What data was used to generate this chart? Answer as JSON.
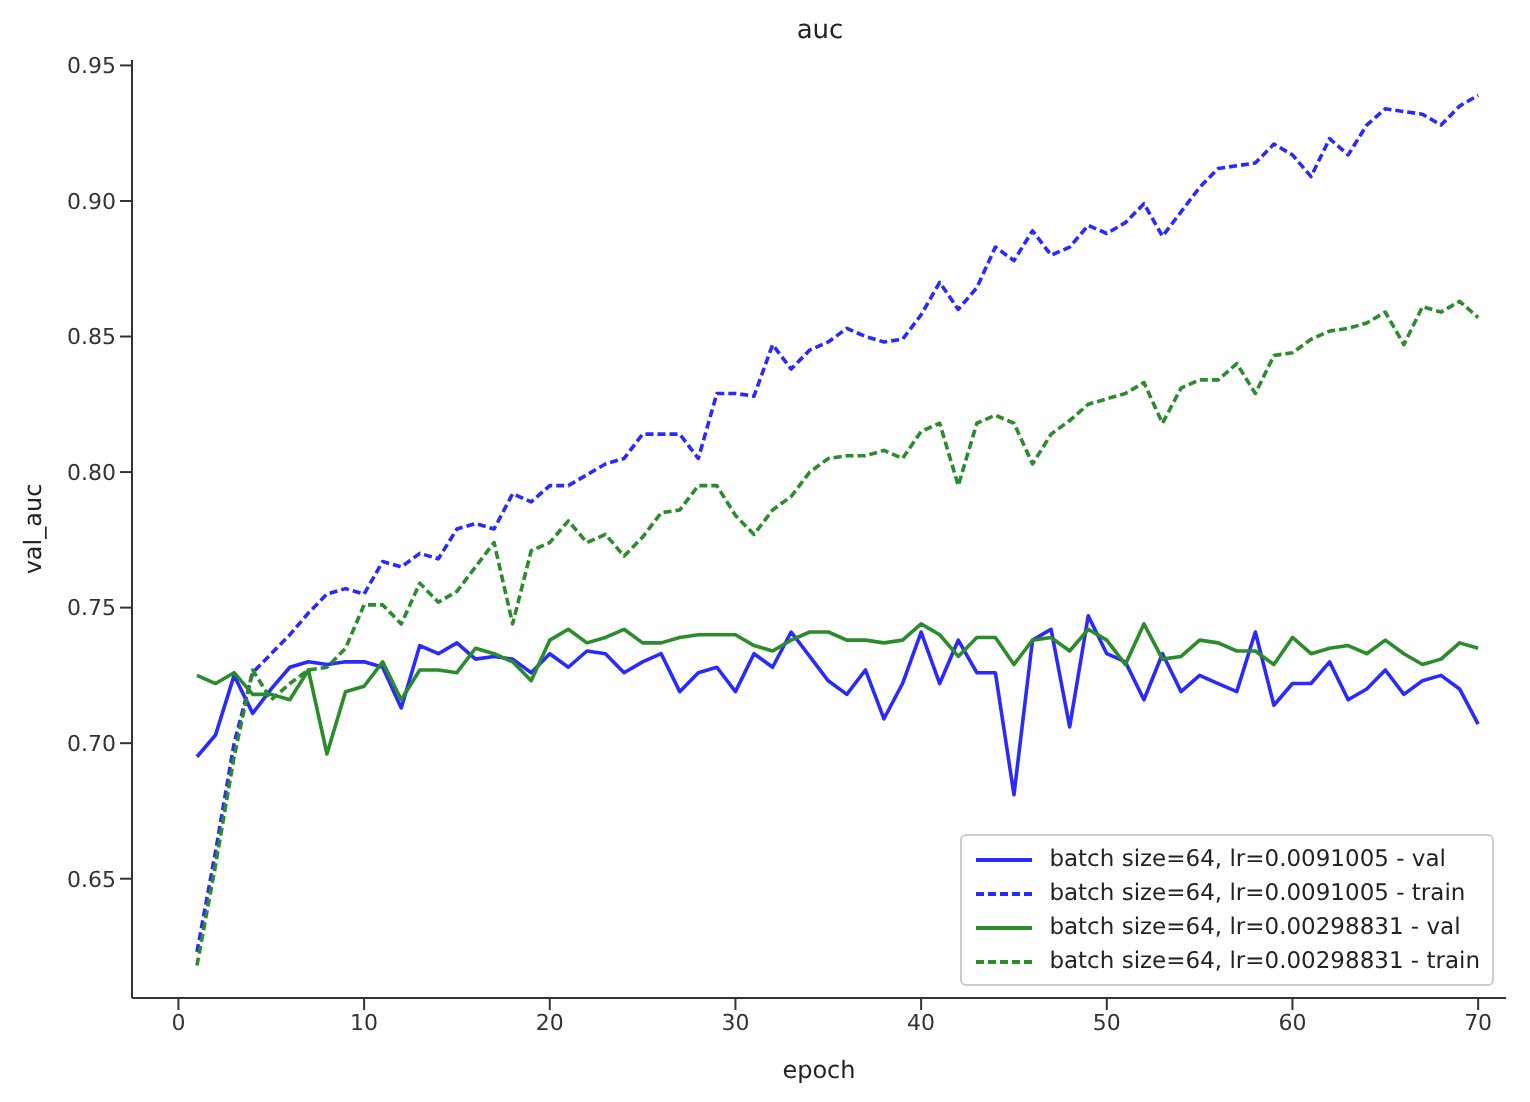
{
  "chart_data": {
    "type": "line",
    "title": "auc",
    "xlabel": "epoch",
    "ylabel": "val_auc",
    "x": [
      1,
      2,
      3,
      4,
      5,
      6,
      7,
      8,
      9,
      10,
      11,
      12,
      13,
      14,
      15,
      16,
      17,
      18,
      19,
      20,
      21,
      22,
      23,
      24,
      25,
      26,
      27,
      28,
      29,
      30,
      31,
      32,
      33,
      34,
      35,
      36,
      37,
      38,
      39,
      40,
      41,
      42,
      43,
      44,
      45,
      46,
      47,
      48,
      49,
      50,
      51,
      52,
      53,
      54,
      55,
      56,
      57,
      58,
      59,
      60,
      61,
      62,
      63,
      64,
      65,
      66,
      67,
      68,
      69,
      70
    ],
    "series": [
      {
        "name": "batch size=64, lr=0.0091005 - val",
        "color": "#2a2aff",
        "line_style": "solid",
        "values": [
          0.695,
          0.703,
          0.725,
          0.711,
          0.72,
          0.728,
          0.73,
          0.729,
          0.73,
          0.73,
          0.728,
          0.713,
          0.736,
          0.733,
          0.737,
          0.731,
          0.732,
          0.731,
          0.726,
          0.733,
          0.728,
          0.734,
          0.733,
          0.726,
          0.73,
          0.733,
          0.719,
          0.726,
          0.728,
          0.719,
          0.733,
          0.728,
          0.741,
          0.732,
          0.723,
          0.718,
          0.727,
          0.709,
          0.722,
          0.741,
          0.722,
          0.738,
          0.726,
          0.726,
          0.681,
          0.738,
          0.742,
          0.706,
          0.747,
          0.733,
          0.73,
          0.716,
          0.733,
          0.719,
          0.725,
          0.722,
          0.719,
          0.741,
          0.714,
          0.722,
          0.722,
          0.73,
          0.716,
          0.72,
          0.727,
          0.718,
          0.723,
          0.725,
          0.72,
          0.707
        ]
      },
      {
        "name": "batch size=64, lr=0.0091005 - train",
        "color": "#2a2aff",
        "line_style": "dashed",
        "values": [
          0.623,
          0.66,
          0.7,
          0.726,
          0.733,
          0.74,
          0.748,
          0.755,
          0.757,
          0.755,
          0.767,
          0.765,
          0.77,
          0.768,
          0.779,
          0.781,
          0.779,
          0.792,
          0.789,
          0.795,
          0.795,
          0.799,
          0.803,
          0.805,
          0.814,
          0.814,
          0.814,
          0.805,
          0.829,
          0.829,
          0.828,
          0.847,
          0.838,
          0.845,
          0.848,
          0.853,
          0.85,
          0.848,
          0.849,
          0.858,
          0.87,
          0.86,
          0.868,
          0.883,
          0.878,
          0.889,
          0.88,
          0.883,
          0.891,
          0.888,
          0.892,
          0.899,
          0.887,
          0.896,
          0.905,
          0.912,
          0.913,
          0.914,
          0.921,
          0.917,
          0.909,
          0.923,
          0.917,
          0.928,
          0.934,
          0.933,
          0.932,
          0.928,
          0.935,
          0.939
        ]
      },
      {
        "name": "batch size=64, lr=0.00298831 - val",
        "color": "#2a8c2a",
        "line_style": "solid",
        "values": [
          0.725,
          0.722,
          0.726,
          0.718,
          0.718,
          0.716,
          0.727,
          0.696,
          0.719,
          0.721,
          0.73,
          0.716,
          0.727,
          0.727,
          0.726,
          0.735,
          0.733,
          0.73,
          0.723,
          0.738,
          0.742,
          0.737,
          0.739,
          0.742,
          0.737,
          0.737,
          0.739,
          0.74,
          0.74,
          0.74,
          0.736,
          0.734,
          0.738,
          0.741,
          0.741,
          0.738,
          0.738,
          0.737,
          0.738,
          0.744,
          0.74,
          0.732,
          0.739,
          0.739,
          0.729,
          0.738,
          0.739,
          0.734,
          0.742,
          0.738,
          0.729,
          0.744,
          0.731,
          0.732,
          0.738,
          0.737,
          0.734,
          0.734,
          0.729,
          0.739,
          0.733,
          0.735,
          0.736,
          0.733,
          0.738,
          0.733,
          0.729,
          0.731,
          0.737,
          0.735
        ]
      },
      {
        "name": "batch size=64, lr=0.00298831 - train",
        "color": "#2a8c2a",
        "line_style": "dashed",
        "values": [
          0.618,
          0.655,
          0.695,
          0.727,
          0.716,
          0.722,
          0.727,
          0.728,
          0.735,
          0.751,
          0.751,
          0.744,
          0.759,
          0.752,
          0.756,
          0.765,
          0.774,
          0.744,
          0.771,
          0.774,
          0.782,
          0.774,
          0.777,
          0.769,
          0.776,
          0.785,
          0.786,
          0.795,
          0.795,
          0.784,
          0.777,
          0.786,
          0.791,
          0.8,
          0.805,
          0.806,
          0.806,
          0.808,
          0.805,
          0.815,
          0.818,
          0.795,
          0.818,
          0.821,
          0.818,
          0.803,
          0.814,
          0.819,
          0.825,
          0.827,
          0.829,
          0.833,
          0.818,
          0.831,
          0.834,
          0.834,
          0.84,
          0.829,
          0.843,
          0.844,
          0.849,
          0.852,
          0.853,
          0.855,
          0.859,
          0.847,
          0.861,
          0.859,
          0.863,
          0.857
        ]
      }
    ],
    "xlim": [
      -2.5,
      71.5
    ],
    "xticks": [
      0,
      10,
      20,
      30,
      40,
      50,
      60,
      70
    ],
    "ylim": [
      0.606,
      0.952
    ],
    "yticks": [
      {
        "value": 0.65,
        "label": "0.65"
      },
      {
        "value": 0.7,
        "label": "0.70"
      },
      {
        "value": 0.75,
        "label": "0.75"
      },
      {
        "value": 0.8,
        "label": "0.80"
      },
      {
        "value": 0.85,
        "label": "0.85"
      },
      {
        "value": 0.9,
        "label": "0.90"
      },
      {
        "value": 0.95,
        "label": "0.95"
      }
    ],
    "grid": false,
    "legend": "bottom right",
    "marker": "none"
  }
}
